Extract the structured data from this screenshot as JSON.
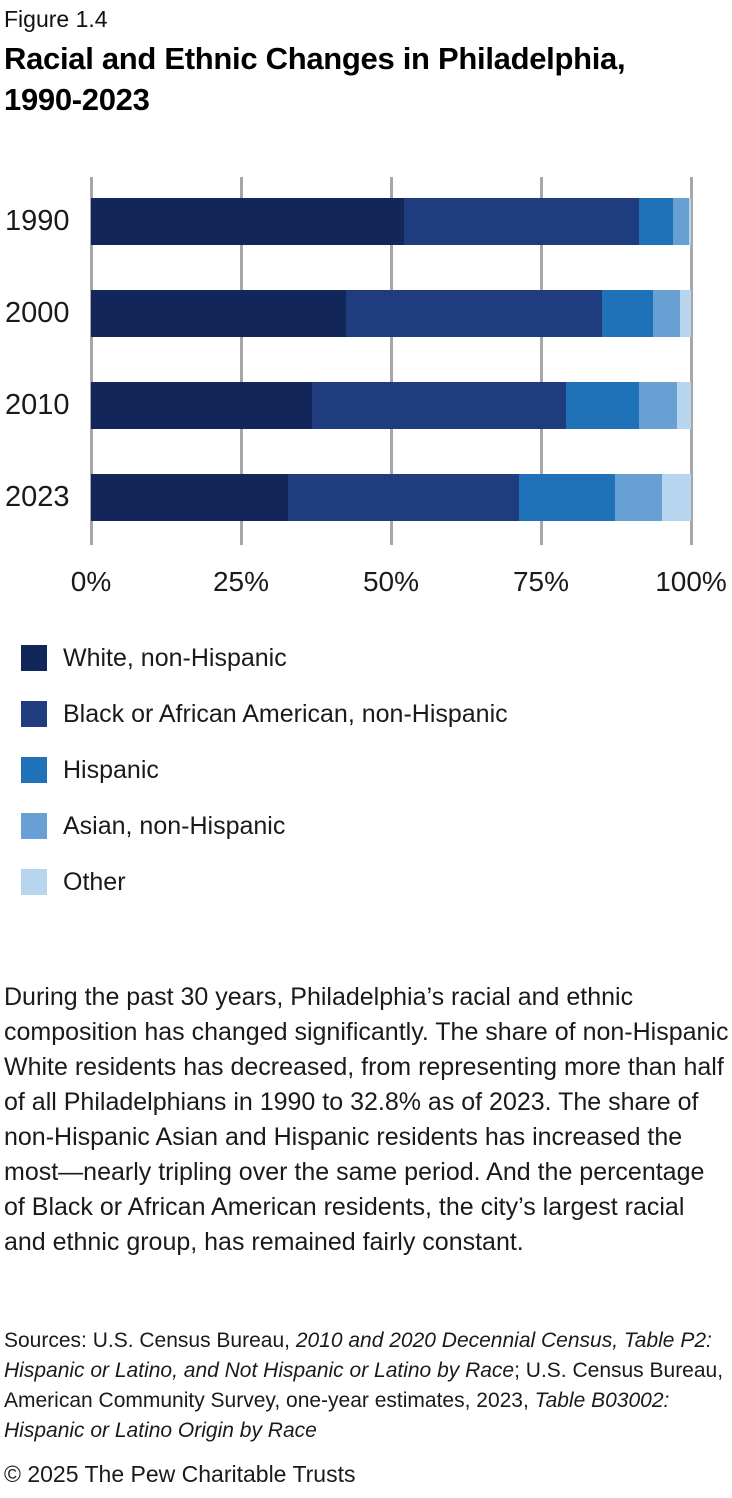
{
  "figure_label": "Figure 1.4",
  "title_lines": [
    "Racial and Ethnic Changes in Philadelphia,",
    "1990-2023"
  ],
  "chart_data": {
    "type": "bar",
    "orientation": "horizontal",
    "stacked": true,
    "title": "Racial and Ethnic Changes in Philadelphia, 1990-2023",
    "categories": [
      "1990",
      "2000",
      "2010",
      "2023"
    ],
    "series": [
      {
        "name": "White, non-Hispanic",
        "color": "#12265A",
        "values": [
          52.1,
          42.5,
          36.9,
          32.8
        ]
      },
      {
        "name": "Black or African American, non-Hispanic",
        "color": "#1E3C7E",
        "values": [
          39.3,
          42.6,
          42.2,
          38.6
        ]
      },
      {
        "name": "Hispanic",
        "color": "#1F72B8",
        "values": [
          5.6,
          8.5,
          12.3,
          16.0
        ]
      },
      {
        "name": "Asian, non-Hispanic",
        "color": "#68A0D3",
        "values": [
          2.7,
          4.5,
          6.3,
          7.7
        ]
      },
      {
        "name": "Other",
        "color": "#B8D5EF",
        "values": [
          0.3,
          1.9,
          2.3,
          4.9
        ]
      }
    ],
    "x_axis": {
      "min": 0,
      "max": 100,
      "ticks": [
        "0%",
        "25%",
        "50%",
        "75%",
        "100%"
      ]
    },
    "grid": true,
    "gridline_color": "#A7A7A7",
    "legend_position": "bottom-left"
  },
  "description": "During the past 30 years, Philadelphia’s racial and ethnic composition has changed significantly. The share of non-Hispanic White residents has decreased, from representing more than half of all Philadelphians in 1990 to 32.8% as of 2023. The share of non-Hispanic Asian and Hispanic residents has increased the most—nearly tripling over the same period. And the percentage of Black or African American residents, the city’s largest racial and ethnic group, has remained fairly constant.",
  "sources_parts": [
    {
      "text": "Sources: U.S. Census Bureau, ",
      "italic": false
    },
    {
      "text": "2010 and 2020 Decennial Census, Table P2: Hispanic or Latino, and Not Hispanic or Latino by Race",
      "italic": true
    },
    {
      "text": "; U.S. Census Bureau, American Community Survey, one-year estimates, 2023, ",
      "italic": false
    },
    {
      "text": "Table B03002: Hispanic or Latino Origin by Race",
      "italic": true
    }
  ],
  "copyright": "© 2025 The Pew Charitable Trusts"
}
